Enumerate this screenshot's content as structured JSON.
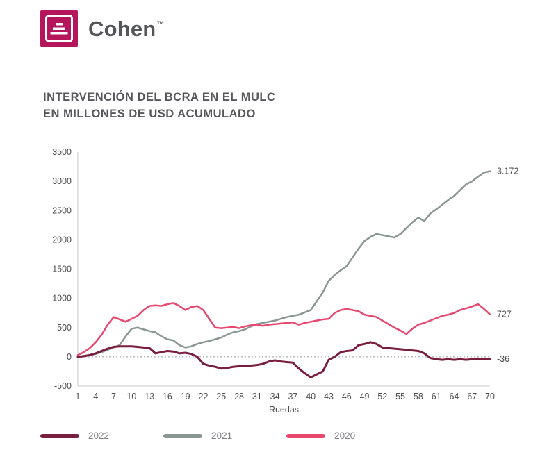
{
  "brand": {
    "name": "Cohen",
    "tm": "™",
    "color": "#b5165b"
  },
  "title": {
    "line1": "INTERVENCIÓN DEL BCRA EN EL MULC",
    "line2": "EN MILLONES DE USD ACUMULADO"
  },
  "chart_data": {
    "type": "line",
    "title": "INTERVENCIÓN DEL BCRA EN EL MULC EN MILLONES DE USD ACUMULADO",
    "xlabel": "Ruedas",
    "ylabel": "",
    "ylim": [
      -500,
      3500
    ],
    "yticks": [
      -500,
      0,
      500,
      1000,
      1500,
      2000,
      2500,
      3000,
      3500
    ],
    "x_range": [
      1,
      70
    ],
    "xticks": [
      1,
      4,
      7,
      10,
      13,
      16,
      19,
      22,
      25,
      28,
      31,
      34,
      37,
      40,
      43,
      46,
      49,
      52,
      55,
      58,
      61,
      64,
      67,
      70
    ],
    "grid": false,
    "zero_line_dotted": true,
    "legend_position": "bottom",
    "series": [
      {
        "name": "2022",
        "color": "#7a1e3f",
        "end_label": "-36",
        "values": [
          0,
          10,
          30,
          60,
          100,
          140,
          170,
          180,
          180,
          180,
          170,
          160,
          150,
          60,
          80,
          100,
          90,
          60,
          70,
          50,
          0,
          -120,
          -150,
          -170,
          -200,
          -190,
          -170,
          -160,
          -150,
          -150,
          -140,
          -120,
          -80,
          -60,
          -80,
          -90,
          -100,
          -200,
          -280,
          -350,
          -300,
          -250,
          -50,
          0,
          80,
          100,
          110,
          200,
          220,
          250,
          220,
          160,
          150,
          140,
          130,
          120,
          110,
          100,
          60,
          -20,
          -40,
          -50,
          -40,
          -50,
          -40,
          -50,
          -40,
          -30,
          -40,
          -36
        ]
      },
      {
        "name": "2021",
        "color": "#8a9691",
        "end_label": "3.172",
        "values": [
          0,
          20,
          30,
          50,
          80,
          120,
          160,
          200,
          350,
          480,
          500,
          470,
          440,
          420,
          350,
          300,
          280,
          200,
          160,
          180,
          220,
          250,
          270,
          300,
          330,
          380,
          420,
          440,
          470,
          520,
          560,
          580,
          600,
          620,
          650,
          680,
          700,
          720,
          760,
          800,
          950,
          1100,
          1300,
          1400,
          1480,
          1550,
          1700,
          1850,
          1980,
          2050,
          2100,
          2080,
          2060,
          2040,
          2100,
          2200,
          2300,
          2380,
          2320,
          2450,
          2520,
          2600,
          2680,
          2750,
          2850,
          2950,
          3000,
          3080,
          3150,
          3172
        ]
      },
      {
        "name": "2020",
        "color": "#e8486e",
        "end_label": "727",
        "values": [
          30,
          80,
          150,
          250,
          380,
          550,
          680,
          640,
          600,
          650,
          700,
          800,
          870,
          880,
          870,
          900,
          920,
          870,
          800,
          850,
          870,
          800,
          650,
          500,
          490,
          500,
          510,
          490,
          520,
          540,
          550,
          530,
          550,
          560,
          570,
          580,
          590,
          550,
          580,
          600,
          620,
          640,
          650,
          750,
          800,
          820,
          800,
          780,
          720,
          700,
          680,
          620,
          560,
          500,
          450,
          390,
          480,
          550,
          580,
          620,
          660,
          700,
          720,
          750,
          800,
          830,
          860,
          900,
          820,
          727
        ]
      }
    ]
  },
  "legend": {
    "items": [
      {
        "label": "2022",
        "color": "#7a1e3f"
      },
      {
        "label": "2021",
        "color": "#8a9691"
      },
      {
        "label": "2020",
        "color": "#e8486e"
      }
    ]
  }
}
